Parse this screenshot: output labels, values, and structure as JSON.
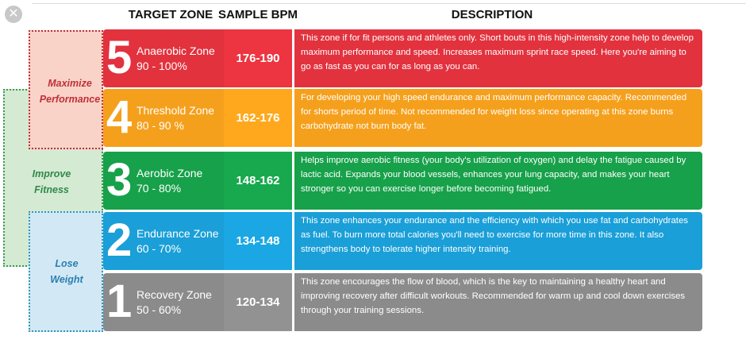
{
  "headers": [
    "TARGET ZONE",
    "SAMPLE BPM",
    "DESCRIPTION"
  ],
  "groups": [
    "Maximize Performance",
    "Improve Fitness",
    "Lose Weight"
  ],
  "rows": [
    {
      "number": "5",
      "name": "Anaerobic Zone",
      "range": "90 - 100%",
      "bpm": "176-190",
      "description": "This zone if for fit persons and athletes only. Short bouts in this high-intensity zone help to develop maximum performance and speed. Increases maximum sprint race speed. Here you're aiming to go as fast as you can for as long as you can."
    },
    {
      "number": "4",
      "name": "Threshold Zone",
      "range": "80 - 90 %",
      "bpm": "162-176",
      "description": "For developing your high speed endurance and maximum performance capacity. Recommended for shorts period of time. Not recommended for weight loss since operating at this zone burns carbohydrate not burn body fat."
    },
    {
      "number": "3",
      "name": "Aerobic Zone",
      "range": "70 - 80%",
      "bpm": "148-162",
      "description": "Helps improve aerobic fitness (your body's utilization of oxygen) and delay the fatigue caused by lactic acid. Expands your blood vessels, enhances your lung capacity, and makes your heart stronger so you can exercise longer before becoming fatigued."
    },
    {
      "number": "2",
      "name": "Endurance Zone",
      "range": "60 - 70%",
      "bpm": "134-148",
      "description": "This zone enhances your endurance and the efficiency with which you use fat and carbohydrates as fuel. To burn more total calories you'll need to exercise for more time in this zone. It also strengthens body to tolerate higher intensity training."
    },
    {
      "number": "1",
      "name": "Recovery Zone",
      "range": "50 - 60%",
      "bpm": "120-134",
      "description": "This zone encourages the flow of blood, which is the key to maintaining a healthy heart and improving recovery after difficult workouts. Recommended for warm up and cool down exercises through your training sessions."
    }
  ]
}
